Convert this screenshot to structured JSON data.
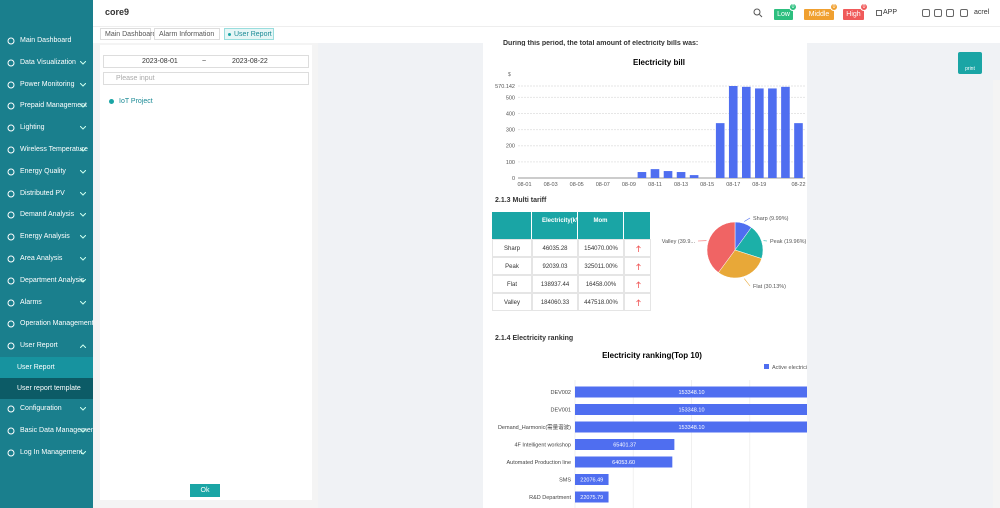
{
  "sidebar": {
    "brand": "core9",
    "menu": [
      {
        "label": "Main Dashboard"
      },
      {
        "label": "Data Visualization"
      },
      {
        "label": "Power Monitoring"
      },
      {
        "label": "Prepaid Management"
      },
      {
        "label": "Lighting"
      },
      {
        "label": "Wireless Temperature"
      },
      {
        "label": "Energy Quality"
      },
      {
        "label": "Distributed PV"
      },
      {
        "label": "Demand Analysis"
      },
      {
        "label": "Energy Analysis"
      },
      {
        "label": "Area Analysis"
      },
      {
        "label": "Department Analysis"
      },
      {
        "label": "Alarms"
      },
      {
        "label": "Operation Management"
      },
      {
        "label": "User Report",
        "children": [
          "User Report",
          "User report template"
        ]
      },
      {
        "label": "Configuration"
      },
      {
        "label": "Basic Data Management"
      },
      {
        "label": "Log In Management"
      }
    ]
  },
  "header": {
    "alarms": [
      {
        "label": "Low",
        "count": 0
      },
      {
        "label": "Middle",
        "count": 0
      },
      {
        "label": "High",
        "count": 0
      }
    ],
    "app": "APP",
    "user": "acrel"
  },
  "tabs": [
    "Main Dashboard",
    "Alarm Information",
    "User Report"
  ],
  "filter": {
    "date_start": "2023-08-01",
    "separator": "~",
    "date_end": "2023-08-22",
    "placeholder": "Please input",
    "tree": "IoT Project",
    "ok": "Ok"
  },
  "print": "print",
  "report": {
    "intro": "During this period, the total amount of electricity bills was:",
    "bill_chart": {
      "type": "bar",
      "title": "Electricity bill",
      "y_label": "$",
      "color": "#4f6ef0",
      "categories": [
        "08-01",
        null,
        "08-03",
        null,
        "08-05",
        null,
        "08-07",
        null,
        "08-09",
        null,
        "08-11",
        null,
        "08-13",
        null,
        "08-15",
        null,
        "08-17",
        null,
        "08-19",
        null,
        null,
        "08-22"
      ],
      "values": [
        0,
        0,
        0,
        0,
        0,
        0,
        0,
        0,
        0,
        37,
        55,
        43,
        37,
        18,
        0,
        340,
        570.142,
        565,
        555,
        555,
        565,
        340
      ],
      "ylim": [
        0,
        570.142
      ],
      "yticks": [
        0,
        100,
        200,
        300,
        400,
        500,
        570.142
      ],
      "grid": true
    },
    "tariff": {
      "heading": "2.1.3  Multi tariff",
      "table": {
        "columns": [
          "",
          "Electricity(kW·h)",
          "Mom",
          ""
        ],
        "rows": [
          [
            "Sharp",
            "46035.28",
            "154070.00%"
          ],
          [
            "Peak",
            "92039.03",
            "325011.00%"
          ],
          [
            "Flat",
            "138937.44",
            "16458.00%"
          ],
          [
            "Valley",
            "184060.33",
            "447518.00%"
          ]
        ]
      },
      "pie": {
        "type": "pie",
        "categories": [
          "Sharp",
          "Peak",
          "Flat",
          "Valley"
        ],
        "values": [
          9.99,
          19.96,
          30.13,
          39.9
        ],
        "value_labels": [
          "Sharp (9.99%)",
          "Peak (19.96%)",
          "Flat (30.13%)",
          "Valley (39.9..."
        ],
        "colors": [
          "#4f6ef0",
          "#1cb0a8",
          "#e8a838",
          "#f06464"
        ]
      }
    },
    "ranking": {
      "heading": "2.1.4  Electricity ranking",
      "chart": {
        "type": "hbar",
        "title": "Electricity ranking(Top 10)",
        "legend": "Active electricity",
        "color": "#4f6ef0",
        "categories": [
          "DEV002",
          "DEV001",
          "Demand_Harmonic(需量谐波)",
          "4F Intelligent workshop",
          "Automated Production line",
          "SMS",
          "R&D Department"
        ],
        "values": [
          153348.1,
          153348.1,
          153348.1,
          65401.37,
          64053.6,
          22076.49,
          22075.79
        ],
        "value_labels": [
          "153348.10",
          "153348.10",
          "153348.10",
          "65401.37",
          "64053.60",
          "22076.49",
          "22075.79"
        ]
      }
    }
  }
}
